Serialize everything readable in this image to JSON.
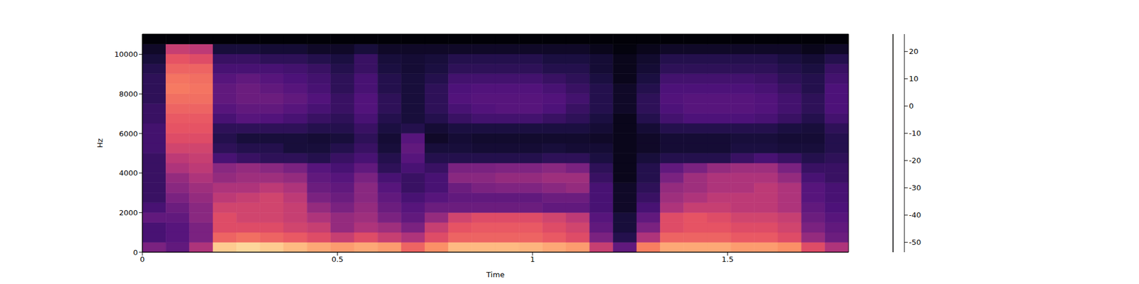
{
  "chart_data": {
    "type": "heatmap",
    "x_label": "Time",
    "y_label": "Hz",
    "xlim": [
      0,
      1.81
    ],
    "xticks": [
      0,
      0.5,
      1,
      1.5
    ],
    "ylim": [
      0,
      11025
    ],
    "yticks": [
      0,
      2000,
      4000,
      6000,
      8000,
      10000
    ],
    "color_range": [
      -53.6,
      26.4
    ],
    "color_ticks": [
      -50,
      -40,
      -30,
      -20,
      -10,
      0,
      10,
      20
    ],
    "cells": [
      [
        -25,
        -35,
        -35,
        -30,
        -35,
        -38,
        -38,
        -38,
        -38,
        -38,
        -36,
        -36,
        -36,
        -38,
        -38,
        -40,
        -40,
        -40,
        -42,
        -45,
        -48,
        -53
      ],
      [
        -30,
        -32,
        -32,
        -30,
        -28,
        -25,
        -22,
        -20,
        -15,
        -12,
        -8,
        -5,
        -3,
        -2,
        0,
        2,
        4,
        3,
        0,
        -3,
        -10,
        -53
      ],
      [
        -15,
        -25,
        -25,
        -22,
        -22,
        -20,
        -18,
        -15,
        -12,
        -10,
        -8,
        -5,
        -3,
        -2,
        0,
        2,
        3,
        2,
        0,
        -5,
        -12,
        -53
      ],
      [
        18,
        0,
        -5,
        -5,
        -8,
        -12,
        -15,
        -20,
        -22,
        -35,
        -40,
        -42,
        -40,
        -35,
        -32,
        -30,
        -30,
        -32,
        -35,
        -38,
        -45,
        -53
      ],
      [
        20,
        2,
        -5,
        -8,
        -8,
        -10,
        -15,
        -18,
        -20,
        -38,
        -42,
        -45,
        -40,
        -32,
        -30,
        -28,
        -28,
        -30,
        -35,
        -38,
        -45,
        -53
      ],
      [
        18,
        0,
        -5,
        -8,
        -8,
        -8,
        -12,
        -18,
        -22,
        -40,
        -42,
        -45,
        -40,
        -33,
        -30,
        -28,
        -30,
        -32,
        -35,
        -40,
        -46,
        -53
      ],
      [
        15,
        -2,
        -8,
        -10,
        -10,
        -12,
        -15,
        -20,
        -25,
        -40,
        -45,
        -45,
        -40,
        -35,
        -32,
        -30,
        -32,
        -34,
        -36,
        -40,
        -46,
        -53
      ],
      [
        12,
        -5,
        -10,
        -15,
        -20,
        -25,
        -28,
        -30,
        -32,
        -42,
        -45,
        -46,
        -42,
        -38,
        -35,
        -33,
        -35,
        -36,
        -38,
        -42,
        -48,
        -53
      ],
      [
        10,
        -10,
        -20,
        -20,
        -25,
        -28,
        -30,
        -32,
        -35,
        -38,
        -42,
        -45,
        -42,
        -40,
        -38,
        -38,
        -40,
        -40,
        -42,
        -44,
        -48,
        -53
      ],
      [
        12,
        -5,
        -15,
        -18,
        -20,
        -22,
        -22,
        -25,
        -30,
        -35,
        -38,
        -40,
        -38,
        -35,
        -33,
        -33,
        -35,
        -35,
        -38,
        -38,
        -45,
        -53
      ],
      [
        10,
        -10,
        -18,
        -25,
        -28,
        -30,
        -32,
        -35,
        -40,
        -42,
        -45,
        -46,
        -44,
        -42,
        -40,
        -40,
        -42,
        -42,
        -44,
        -45,
        -48,
        -53
      ],
      [
        0,
        -15,
        -25,
        -30,
        -32,
        -35,
        -38,
        -38,
        -35,
        -32,
        -30,
        -32,
        -42,
        -45,
        -45,
        -45,
        -45,
        -45,
        -46,
        -46,
        -48,
        -53
      ],
      [
        8,
        -5,
        -10,
        -20,
        -28,
        -32,
        -35,
        -35,
        -38,
        -42,
        -45,
        -48,
        -46,
        -42,
        -40,
        -40,
        -40,
        -42,
        -44,
        -45,
        -48,
        -53
      ],
      [
        15,
        0,
        -3,
        -8,
        -28,
        -30,
        -28,
        -22,
        -25,
        -42,
        -45,
        -46,
        -44,
        -38,
        -35,
        -33,
        -34,
        -36,
        -40,
        -42,
        -48,
        -53
      ],
      [
        15,
        0,
        -2,
        -5,
        -28,
        -30,
        -25,
        -22,
        -25,
        -42,
        -46,
        -47,
        -44,
        -36,
        -33,
        -32,
        -33,
        -36,
        -40,
        -42,
        -48,
        -53
      ],
      [
        15,
        0,
        -2,
        -5,
        -28,
        -30,
        -24,
        -20,
        -24,
        -42,
        -46,
        -47,
        -44,
        -36,
        -32,
        -32,
        -33,
        -36,
        -40,
        -42,
        -48,
        -53
      ],
      [
        14,
        0,
        -2,
        -5,
        -28,
        -30,
        -24,
        -20,
        -24,
        -42,
        -46,
        -47,
        -44,
        -36,
        -32,
        -32,
        -33,
        -36,
        -40,
        -42,
        -48,
        -53
      ],
      [
        12,
        -2,
        -5,
        -8,
        -30,
        -28,
        -22,
        -18,
        -22,
        -40,
        -45,
        -47,
        -44,
        -38,
        -34,
        -33,
        -35,
        -38,
        -42,
        -44,
        -48,
        -53
      ],
      [
        10,
        -5,
        -8,
        -12,
        -30,
        -28,
        -20,
        -18,
        -25,
        -40,
        -46,
        -47,
        -44,
        -40,
        -38,
        -36,
        -38,
        -40,
        -42,
        -44,
        -48,
        -53
      ],
      [
        -10,
        -25,
        -30,
        -32,
        -35,
        -35,
        -35,
        -38,
        -40,
        -44,
        -46,
        -48,
        -46,
        -44,
        -42,
        -42,
        -42,
        -44,
        -46,
        -46,
        -50,
        -53
      ],
      [
        -30,
        -42,
        -45,
        -45,
        -48,
        -48,
        -48,
        -50,
        -50,
        -50,
        -50,
        -50,
        -50,
        -50,
        -48,
        -48,
        -48,
        -50,
        -50,
        -50,
        -52,
        -53
      ],
      [
        5,
        -15,
        -25,
        -30,
        -35,
        -38,
        -40,
        -42,
        -42,
        -45,
        -48,
        -48,
        -46,
        -42,
        -40,
        -40,
        -42,
        -44,
        -46,
        -47,
        -50,
        -53
      ],
      [
        12,
        0,
        -5,
        -5,
        -15,
        -18,
        -20,
        -25,
        -30,
        -42,
        -46,
        -46,
        -42,
        -36,
        -34,
        -33,
        -34,
        -36,
        -40,
        -42,
        -48,
        -53
      ],
      [
        12,
        0,
        -3,
        -3,
        -10,
        -15,
        -18,
        -18,
        -25,
        -42,
        -46,
        -46,
        -42,
        -34,
        -32,
        -32,
        -34,
        -36,
        -40,
        -42,
        -48,
        -53
      ],
      [
        12,
        0,
        -3,
        -5,
        -10,
        -12,
        -15,
        -15,
        -20,
        -42,
        -46,
        -46,
        -42,
        -34,
        -32,
        -32,
        -34,
        -36,
        -40,
        -42,
        -48,
        -53
      ],
      [
        10,
        -2,
        -5,
        -8,
        -12,
        -12,
        -15,
        -15,
        -18,
        -38,
        -44,
        -45,
        -42,
        -34,
        -32,
        -32,
        -34,
        -36,
        -40,
        -42,
        -48,
        -53
      ],
      [
        10,
        -2,
        -5,
        -8,
        -12,
        -12,
        -12,
        -15,
        -18,
        -35,
        -44,
        -45,
        -42,
        -35,
        -33,
        -33,
        -35,
        -37,
        -40,
        -42,
        -48,
        -53
      ],
      [
        8,
        -5,
        -8,
        -10,
        -15,
        -15,
        -15,
        -20,
        -25,
        -38,
        -45,
        -46,
        -44,
        -38,
        -36,
        -36,
        -38,
        -40,
        -42,
        -44,
        -48,
        -53
      ],
      [
        -5,
        -20,
        -25,
        -28,
        -30,
        -32,
        -32,
        -35,
        -38,
        -42,
        -45,
        -46,
        -45,
        -42,
        -40,
        -40,
        -42,
        -42,
        -44,
        -46,
        -50,
        -53
      ],
      [
        -15,
        -28,
        -30,
        -32,
        -34,
        -35,
        -35,
        -38,
        -38,
        -40,
        -42,
        -42,
        -40,
        -36,
        -34,
        -34,
        -34,
        -36,
        -38,
        -42,
        -48,
        -53
      ]
    ]
  }
}
